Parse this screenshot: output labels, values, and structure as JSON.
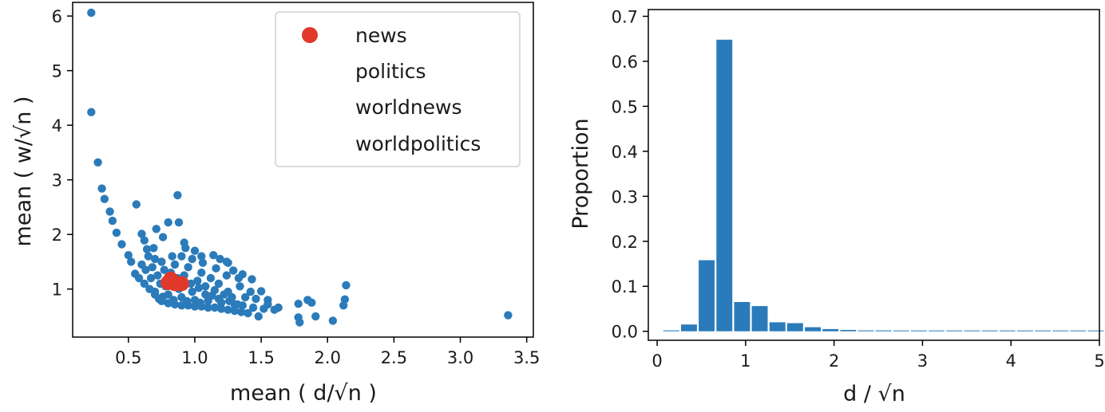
{
  "chart_data": [
    {
      "type": "scatter",
      "xlabel": "mean ( d/√n )",
      "ylabel": "mean ( w/√n )",
      "xlim": [
        0.08,
        3.55
      ],
      "ylim": [
        0.12,
        6.25
      ],
      "xticks": [
        "0.5",
        "1.0",
        "1.5",
        "2.0",
        "2.5",
        "3.0",
        "3.5"
      ],
      "yticks": [
        "1",
        "2",
        "3",
        "4",
        "5",
        "6"
      ],
      "grid": false,
      "legend_position": "top-right",
      "colors": {
        "main": "#2b7bba",
        "highlight": "#e0392b"
      },
      "legend": [
        "news",
        "politics",
        "worldnews",
        "worldpolitics"
      ],
      "series": [
        {
          "values": [
            [
              0.22,
              6.06
            ],
            [
              0.22,
              4.24
            ],
            [
              0.27,
              3.32
            ],
            [
              0.3,
              2.84
            ],
            [
              0.32,
              2.65
            ],
            [
              0.36,
              2.42
            ],
            [
              0.38,
              2.25
            ],
            [
              0.41,
              2.03
            ],
            [
              0.45,
              1.82
            ],
            [
              0.5,
              1.62
            ],
            [
              0.52,
              1.5
            ],
            [
              0.56,
              2.55
            ],
            [
              0.6,
              2.01
            ],
            [
              0.62,
              1.89
            ],
            [
              0.71,
              2.1
            ],
            [
              0.8,
              2.22
            ],
            [
              0.87,
              2.72
            ],
            [
              0.88,
              2.22
            ],
            [
              0.92,
              1.85
            ],
            [
              0.64,
              1.73
            ],
            [
              0.76,
              1.95
            ],
            [
              1.05,
              1.6
            ],
            [
              1.19,
              1.55
            ],
            [
              1.25,
              1.48
            ],
            [
              1.29,
              1.34
            ],
            [
              1.36,
              1.27
            ],
            [
              1.43,
              1.18
            ],
            [
              1.5,
              0.96
            ],
            [
              1.48,
              0.5
            ],
            [
              1.55,
              0.72
            ],
            [
              1.63,
              0.66
            ],
            [
              1.78,
              0.73
            ],
            [
              1.85,
              0.8
            ],
            [
              1.88,
              0.75
            ],
            [
              1.91,
              0.5
            ],
            [
              2.04,
              0.42
            ],
            [
              2.12,
              0.7
            ],
            [
              2.14,
              1.07
            ],
            [
              2.13,
              0.81
            ],
            [
              1.78,
              0.48
            ],
            [
              1.79,
              0.39
            ],
            [
              3.36,
              0.52
            ],
            [
              1.38,
              0.85
            ],
            [
              1.32,
              0.72
            ],
            [
              1.25,
              0.95
            ],
            [
              0.55,
              1.28
            ],
            [
              0.58,
              1.2
            ],
            [
              0.62,
              1.1
            ],
            [
              0.66,
              1.0
            ],
            [
              0.7,
              0.9
            ],
            [
              0.73,
              0.82
            ],
            [
              0.75,
              0.78
            ],
            [
              0.8,
              0.74
            ],
            [
              0.85,
              0.72
            ],
            [
              0.9,
              0.7
            ],
            [
              0.95,
              0.7
            ],
            [
              1.0,
              0.68
            ],
            [
              1.05,
              0.68
            ],
            [
              1.1,
              0.66
            ],
            [
              1.15,
              0.66
            ],
            [
              1.2,
              0.64
            ],
            [
              1.25,
              0.62
            ],
            [
              1.3,
              0.6
            ],
            [
              1.35,
              0.58
            ],
            [
              1.4,
              0.56
            ],
            [
              0.68,
              1.4
            ],
            [
              0.75,
              1.5
            ],
            [
              0.85,
              1.45
            ],
            [
              0.95,
              1.4
            ],
            [
              1.05,
              1.3
            ],
            [
              1.12,
              1.2
            ],
            [
              1.18,
              1.1
            ],
            [
              0.72,
              1.25
            ],
            [
              0.82,
              1.3
            ],
            [
              0.92,
              1.25
            ],
            [
              1.02,
              1.15
            ],
            [
              1.08,
              1.05
            ],
            [
              1.15,
              0.98
            ],
            [
              1.22,
              0.9
            ],
            [
              1.28,
              0.85
            ],
            [
              0.78,
              1.05
            ],
            [
              0.88,
              1.0
            ],
            [
              0.98,
              0.95
            ],
            [
              1.08,
              0.9
            ],
            [
              1.18,
              0.82
            ],
            [
              0.7,
              0.95
            ],
            [
              0.8,
              0.9
            ],
            [
              0.9,
              0.85
            ],
            [
              1.0,
              0.8
            ],
            [
              1.1,
              0.78
            ],
            [
              1.2,
              0.75
            ],
            [
              1.3,
              0.72
            ],
            [
              0.65,
              1.6
            ],
            [
              0.7,
              1.55
            ],
            [
              0.83,
              1.6
            ],
            [
              0.9,
              1.6
            ],
            [
              0.98,
              1.55
            ],
            [
              1.06,
              1.48
            ],
            [
              1.16,
              1.38
            ],
            [
              1.24,
              1.25
            ],
            [
              1.34,
              1.05
            ],
            [
              1.42,
              0.95
            ],
            [
              1.46,
              0.82
            ],
            [
              1.55,
              0.8
            ],
            [
              0.6,
              1.45
            ],
            [
              0.63,
              1.35
            ],
            [
              0.67,
              1.2
            ],
            [
              0.74,
              1.1
            ],
            [
              0.77,
              1.35
            ],
            [
              0.87,
              1.2
            ],
            [
              0.97,
              1.1
            ],
            [
              1.03,
              1.02
            ],
            [
              1.13,
              0.88
            ],
            [
              1.26,
              0.78
            ],
            [
              1.36,
              0.7
            ],
            [
              1.44,
              0.66
            ],
            [
              0.84,
              0.8
            ],
            [
              0.94,
              0.78
            ],
            [
              1.04,
              0.75
            ],
            [
              0.76,
              0.86
            ],
            [
              1.6,
              0.62
            ],
            [
              1.52,
              0.64
            ],
            [
              1.14,
              1.62
            ],
            [
              1.24,
              1.5
            ],
            [
              1.33,
              1.2
            ],
            [
              0.93,
              1.75
            ],
            [
              1.0,
              1.7
            ],
            [
              0.69,
              1.75
            ]
          ]
        },
        {
          "name": "news",
          "values": [
            [
              0.8,
              1.12
            ],
            [
              0.82,
              1.18
            ],
            [
              0.85,
              1.1
            ],
            [
              0.9,
              1.1
            ]
          ]
        }
      ]
    },
    {
      "type": "bar",
      "xlabel": "d / √n",
      "ylabel": "Proportion",
      "xlim": [
        -0.1,
        5.0
      ],
      "ylim": [
        -0.02,
        0.715
      ],
      "xticks": [
        "0",
        "1",
        "2",
        "3",
        "4",
        "5"
      ],
      "yticks": [
        "0.0",
        "0.1",
        "0.2",
        "0.3",
        "0.4",
        "0.5",
        "0.6",
        "0.7"
      ],
      "grid": false,
      "colors": {
        "main": "#2b7bba"
      },
      "bar_width": 0.18,
      "x": [
        0.16,
        0.36,
        0.56,
        0.76,
        0.96,
        1.16,
        1.36,
        1.56,
        1.76,
        1.96,
        2.16,
        2.36,
        2.56,
        2.76,
        2.96,
        3.16,
        3.36,
        3.56,
        3.76,
        3.96,
        4.16,
        4.36,
        4.56,
        4.76,
        4.96
      ],
      "values": [
        0.002,
        0.015,
        0.158,
        0.648,
        0.065,
        0.056,
        0.02,
        0.018,
        0.009,
        0.005,
        0.003,
        0.002,
        0.002,
        0.001,
        0.001,
        0.001,
        0.001,
        0.001,
        0.001,
        0.001,
        0.0005,
        0.0005,
        0.0005,
        0.0005,
        0.0005
      ]
    }
  ]
}
